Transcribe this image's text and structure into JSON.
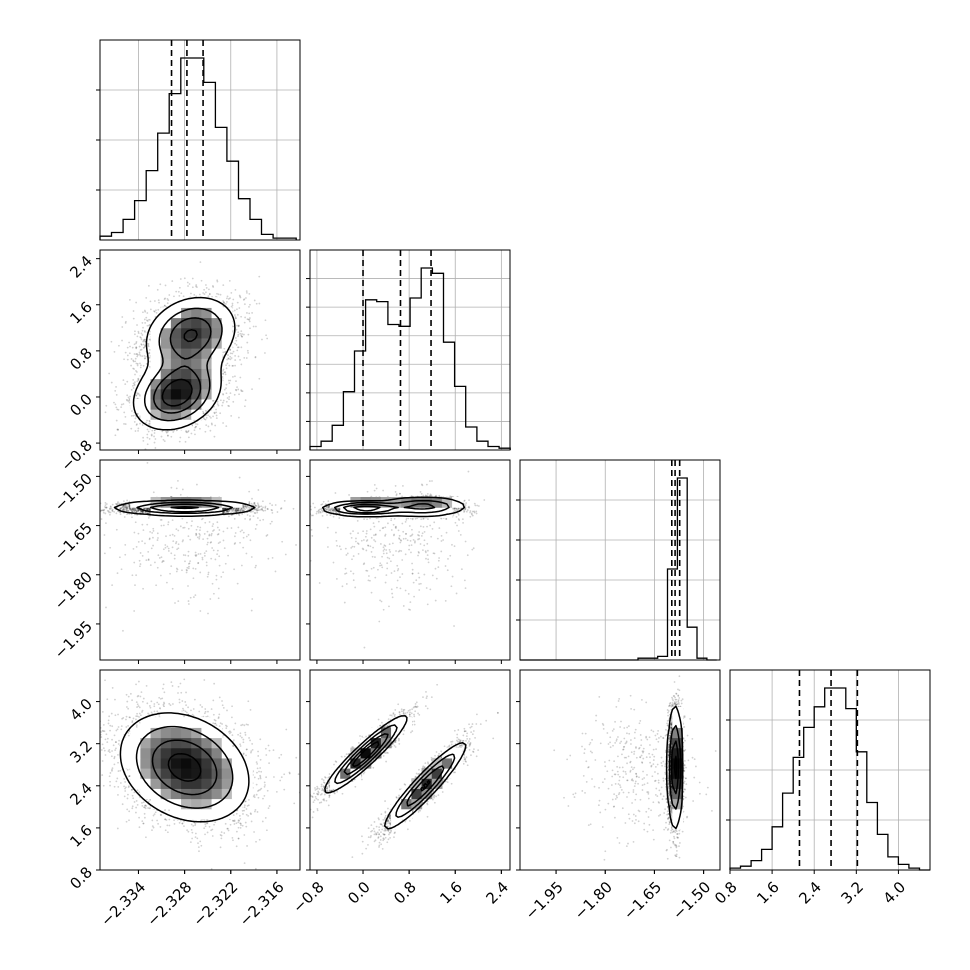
{
  "chart_data": {
    "type": "corner",
    "parameters": [
      {
        "range": [
          -2.339,
          -2.313
        ],
        "ticks": [
          -2.334,
          -2.328,
          -2.322,
          -2.316
        ],
        "tick_labels": [
          "−2.334",
          "−2.328",
          "−2.322",
          "−2.316"
        ],
        "histogram_tick_count": 3,
        "quantiles": [
          -2.3297,
          -2.3277,
          -2.3256
        ],
        "histogram": {
          "edges": [
            -2.339,
            -2.3375,
            -2.336,
            -2.3345,
            -2.333,
            -2.3315,
            -2.33,
            -2.3285,
            -2.327,
            -2.3255,
            -2.324,
            -2.3225,
            -2.321,
            -2.3195,
            -2.318,
            -2.3165,
            -2.315,
            -2.3135
          ],
          "counts": [
            2,
            4,
            11,
            21,
            37,
            57,
            78,
            97,
            97,
            84,
            60,
            42,
            22,
            11,
            3,
            1,
            1
          ]
        }
      },
      {
        "range": [
          -0.92,
          2.55
        ],
        "ticks": [
          -0.8,
          0.0,
          0.8,
          1.6,
          2.4
        ],
        "tick_labels": [
          "−0.8",
          "0.0",
          "0.8",
          "1.6",
          "2.4"
        ],
        "histogram_tick_count": 6,
        "quantiles": [
          0.0,
          0.65,
          1.18
        ],
        "histogram": {
          "edges": [
            -0.92,
            -0.727,
            -0.534,
            -0.341,
            -0.148,
            0.045,
            0.238,
            0.431,
            0.624,
            0.817,
            1.01,
            1.203,
            1.396,
            1.589,
            1.782,
            1.975,
            2.168,
            2.361,
            2.554
          ],
          "counts": [
            2,
            5,
            14,
            33,
            56,
            85,
            84,
            71,
            70,
            86,
            103,
            100,
            61,
            36,
            13,
            5,
            2,
            1
          ]
        }
      },
      {
        "range": [
          -2.06,
          -1.45
        ],
        "ticks": [
          -1.95,
          -1.8,
          -1.65,
          -1.5
        ],
        "tick_labels": [
          "−1.95",
          "−1.80",
          "−1.65",
          "−1.50"
        ],
        "histogram_tick_count": 4,
        "quantiles": [
          -1.597,
          -1.587,
          -1.573
        ],
        "histogram": {
          "edges": [
            -2.06,
            -2.03,
            -2.0,
            -1.97,
            -1.94,
            -1.91,
            -1.88,
            -1.85,
            -1.82,
            -1.79,
            -1.76,
            -1.73,
            -1.7,
            -1.67,
            -1.64,
            -1.61,
            -1.58,
            -1.55,
            -1.52,
            -1.49,
            -1.46
          ],
          "counts": [
            0,
            0,
            0,
            0,
            0,
            0,
            0,
            0,
            0,
            0,
            0,
            0,
            1,
            1,
            2,
            50,
            100,
            18,
            1,
            0
          ]
        }
      },
      {
        "range": [
          0.8,
          4.6
        ],
        "ticks": [
          0.8,
          1.6,
          2.4,
          3.2,
          4.0
        ],
        "tick_labels": [
          "0.8",
          "1.6",
          "2.4",
          "3.2",
          "4.0"
        ],
        "histogram_tick_count": 3,
        "quantiles": [
          2.12,
          2.72,
          3.22
        ],
        "histogram": {
          "edges": [
            0.8,
            1.0,
            1.2,
            1.4,
            1.6,
            1.8,
            2.0,
            2.2,
            2.4,
            2.6,
            2.8,
            3.0,
            3.2,
            3.4,
            3.6,
            3.8,
            4.0,
            4.2,
            4.4,
            4.6
          ],
          "counts": [
            1,
            2,
            5,
            11,
            23,
            41,
            60,
            76,
            87,
            97,
            97,
            86,
            63,
            36,
            19,
            7,
            3,
            1,
            0
          ]
        }
      }
    ],
    "pairs": [
      {
        "row": 1,
        "col": 0,
        "components": [
          {
            "weight": 0.5,
            "mean": [
              -2.3272,
              1.08
            ],
            "sd": [
              0.0032,
              0.36
            ],
            "corr": 0.2
          },
          {
            "weight": 0.5,
            "mean": [
              -2.329,
              0.05
            ],
            "sd": [
              0.003,
              0.33
            ],
            "corr": 0.25
          }
        ]
      },
      {
        "row": 2,
        "col": 0,
        "components": [
          {
            "weight": 0.92,
            "mean": [
              -2.328,
              -1.596
            ],
            "sd": [
              0.004,
              0.01
            ],
            "corr": 0.0
          },
          {
            "weight": 0.08,
            "mean": [
              -2.327,
              -1.7
            ],
            "sd": [
              0.005,
              0.09
            ],
            "corr": 0.0
          }
        ]
      },
      {
        "row": 2,
        "col": 1,
        "components": [
          {
            "weight": 0.5,
            "mean": [
              0.05,
              -1.598
            ],
            "sd": [
              0.33,
              0.01
            ],
            "corr": 0.0
          },
          {
            "weight": 0.42,
            "mean": [
              1.05,
              -1.592
            ],
            "sd": [
              0.35,
              0.014
            ],
            "corr": 0.0
          },
          {
            "weight": 0.08,
            "mean": [
              0.6,
              -1.7
            ],
            "sd": [
              0.6,
              0.09
            ],
            "corr": 0.0
          }
        ]
      },
      {
        "row": 3,
        "col": 0,
        "components": [
          {
            "weight": 1.0,
            "mean": [
              -2.328,
              2.75
            ],
            "sd": [
              0.0042,
              0.52
            ],
            "corr": -0.25
          }
        ]
      },
      {
        "row": 3,
        "col": 1,
        "components": [
          {
            "weight": 0.5,
            "mean": [
              0.05,
              3.0
            ],
            "sd": [
              0.35,
              0.36
            ],
            "corr": 0.93
          },
          {
            "weight": 0.5,
            "mean": [
              1.08,
              2.4
            ],
            "sd": [
              0.36,
              0.42
            ],
            "corr": 0.93
          }
        ]
      },
      {
        "row": 3,
        "col": 2,
        "components": [
          {
            "weight": 0.92,
            "mean": [
              -1.587,
              2.75
            ],
            "sd": [
              0.01,
              0.5
            ],
            "corr": 0.0
          },
          {
            "weight": 0.08,
            "mean": [
              -1.7,
              2.7
            ],
            "sd": [
              0.09,
              0.6
            ],
            "corr": 0.0
          }
        ]
      }
    ],
    "contour_levels": [
      0.393,
      0.865,
      1.0
    ],
    "grid": true,
    "title": "",
    "axis_labels": []
  }
}
